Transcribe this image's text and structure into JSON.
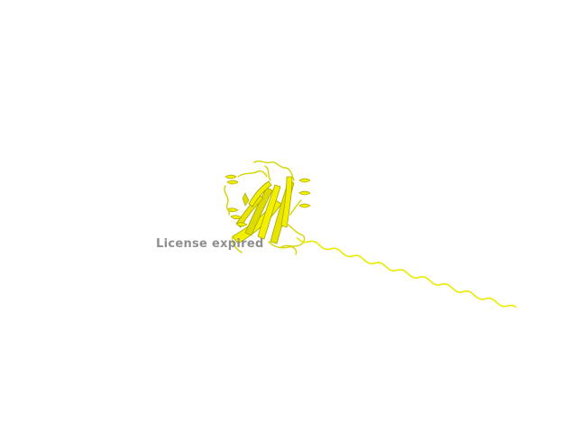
{
  "scene": {
    "background_color": "#ffffff",
    "subject": "protein-cartoon-ribbon",
    "ribbon_color": "#f2f000",
    "ribbon_shadow_color": "#a8a600"
  },
  "watermark": {
    "text": "License expired",
    "color": "#8f8f8f"
  }
}
